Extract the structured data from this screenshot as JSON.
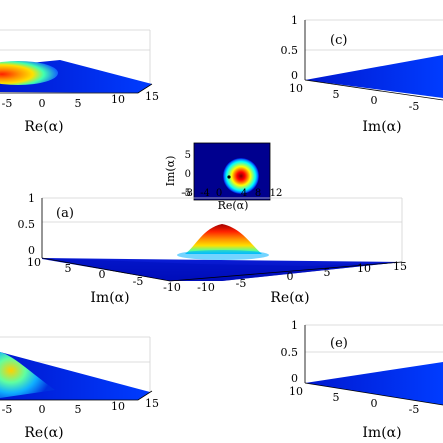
{
  "figure": {
    "top_left": {
      "x_ticks": [
        "-5",
        "0",
        "5",
        "10",
        "15"
      ],
      "x_label": "Re(α)"
    },
    "top_right": {
      "panel_label": "(c)",
      "z_ticks": [
        "1",
        "0.5",
        "0"
      ],
      "y_ticks": [
        "10",
        "5",
        "0",
        "-5"
      ],
      "y_label": "Im(α)"
    },
    "inset": {
      "x_ticks": [
        "-8",
        "-4",
        "0",
        "4",
        "8",
        "12"
      ],
      "y_ticks": [
        "5",
        "0",
        "-5"
      ],
      "x_label": "Re(α)",
      "y_label": "Im(α)"
    },
    "middle": {
      "panel_label": "(a)",
      "z_ticks": [
        "1",
        "0.5",
        "0"
      ],
      "im_ticks": [
        "10",
        "5",
        "0",
        "-5",
        "-10"
      ],
      "re_ticks": [
        "-10",
        "-5",
        "0",
        "5",
        "10",
        "15"
      ],
      "im_label": "Im(α)",
      "re_label": "Re(α)"
    },
    "bottom_left": {
      "x_ticks": [
        "-5",
        "0",
        "5",
        "10",
        "15"
      ],
      "x_label": "Re(α)"
    },
    "bottom_right": {
      "panel_label": "(e)",
      "z_ticks": [
        "1",
        "0.5",
        "0"
      ],
      "y_ticks": [
        "10",
        "5",
        "0",
        "-5"
      ],
      "y_label": "Im(α)"
    },
    "colormap": [
      "#00008f",
      "#0000ff",
      "#0080ff",
      "#00ffff",
      "#80ff80",
      "#ffff00",
      "#ff8000",
      "#ff0000",
      "#800000"
    ]
  }
}
